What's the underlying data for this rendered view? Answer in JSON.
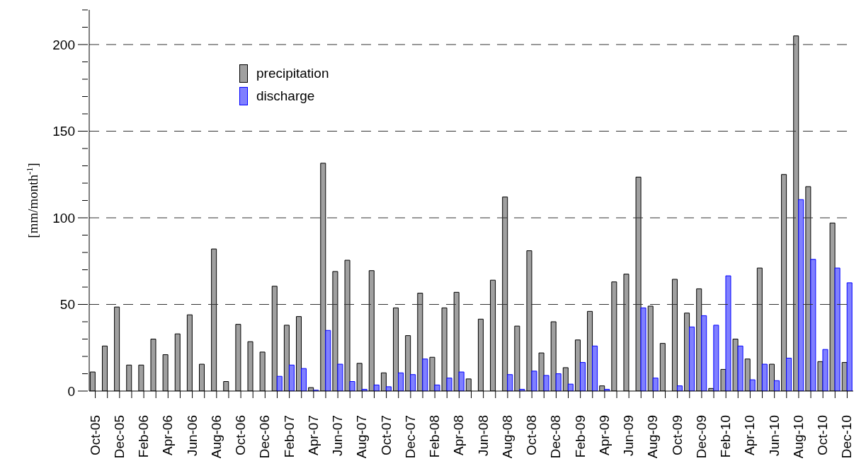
{
  "chart_data": {
    "type": "bar",
    "ylabel": "[mm/month$^{-1}$]",
    "categories": [
      "Oct-05",
      null,
      "Dec-05",
      null,
      "Feb-06",
      null,
      "Apr-06",
      null,
      "Jun-06",
      null,
      "Aug-06",
      null,
      "Oct-06",
      null,
      "Dec-06",
      null,
      "Feb-07",
      null,
      "Apr-07",
      null,
      "Jun-07",
      null,
      "Aug-07",
      null,
      "Oct-07",
      null,
      "Dec-07",
      null,
      "Feb-08",
      null,
      "Apr-08",
      null,
      "Jun-08",
      null,
      "Aug-08",
      null,
      "Oct-08",
      null,
      "Dec-08",
      null,
      "Feb-09",
      null,
      "Apr-09",
      null,
      "Jun-09",
      null,
      "Aug-09",
      null,
      "Oct-09",
      null,
      "Dec-09",
      null,
      "Feb-10",
      null,
      "Apr-10",
      null,
      "Jun-10",
      null,
      "Aug-10",
      null,
      "Oct-10",
      null,
      "Dec-10"
    ],
    "series": [
      {
        "name": "precipitation",
        "color": "#a0a0a0",
        "values": [
          11,
          26,
          48.5,
          15,
          15,
          30,
          21,
          33,
          44,
          15.5,
          82,
          5.5,
          38.5,
          28.5,
          22.5,
          60.5,
          38,
          43,
          2,
          131.5,
          69,
          75.5,
          16,
          69.5,
          10.5,
          48,
          32,
          56.5,
          19.5,
          48,
          57,
          7,
          41.5,
          64,
          112,
          37.5,
          81,
          22,
          40,
          13.5,
          29.5,
          46,
          3,
          63,
          67.5,
          123.5,
          49,
          27.5,
          64.5,
          45,
          59,
          1.5,
          12.5,
          30,
          18.5,
          71,
          15.5,
          125,
          205,
          118,
          17,
          97,
          16.5
        ]
      },
      {
        "name": "discharge",
        "color": "#8080ff",
        "values": [
          0,
          0,
          0,
          0,
          0,
          0,
          0,
          0,
          0,
          0,
          0,
          0,
          0,
          0,
          0,
          8.5,
          15,
          13,
          0.5,
          35,
          15.5,
          5.5,
          1,
          3.5,
          2.5,
          10.5,
          9.5,
          18.5,
          3.5,
          7.5,
          11,
          0,
          0,
          0,
          9.5,
          1,
          11.5,
          9,
          10,
          4,
          16.5,
          26,
          1,
          0,
          0,
          48,
          7.5,
          0,
          3,
          37,
          43.5,
          38,
          66.5,
          26,
          6.5,
          15.5,
          6,
          19,
          110.5,
          76,
          24,
          71,
          62.5
        ]
      }
    ],
    "ylim": [
      0,
      220
    ],
    "yticks": [
      0,
      {
        "value": 10,
        "label": null
      },
      {
        "value": 20,
        "label": null
      },
      {
        "value": 30,
        "label": null
      },
      {
        "value": 40,
        "label": null
      },
      50,
      {
        "value": 60,
        "label": null
      },
      {
        "value": 70,
        "label": null
      },
      {
        "value": 80,
        "label": null
      },
      {
        "value": 90,
        "label": null
      },
      100,
      {
        "value": 110,
        "label": null
      },
      {
        "value": 120,
        "label": null
      },
      {
        "value": 130,
        "label": null
      },
      {
        "value": 140,
        "label": null
      },
      150,
      {
        "value": 160,
        "label": null
      },
      {
        "value": 170,
        "label": null
      },
      {
        "value": 180,
        "label": null
      },
      {
        "value": 190,
        "label": null
      },
      200,
      {
        "value": 210,
        "label": null
      },
      {
        "value": 220,
        "label": null
      }
    ],
    "grid": "y",
    "legend": "top left"
  }
}
